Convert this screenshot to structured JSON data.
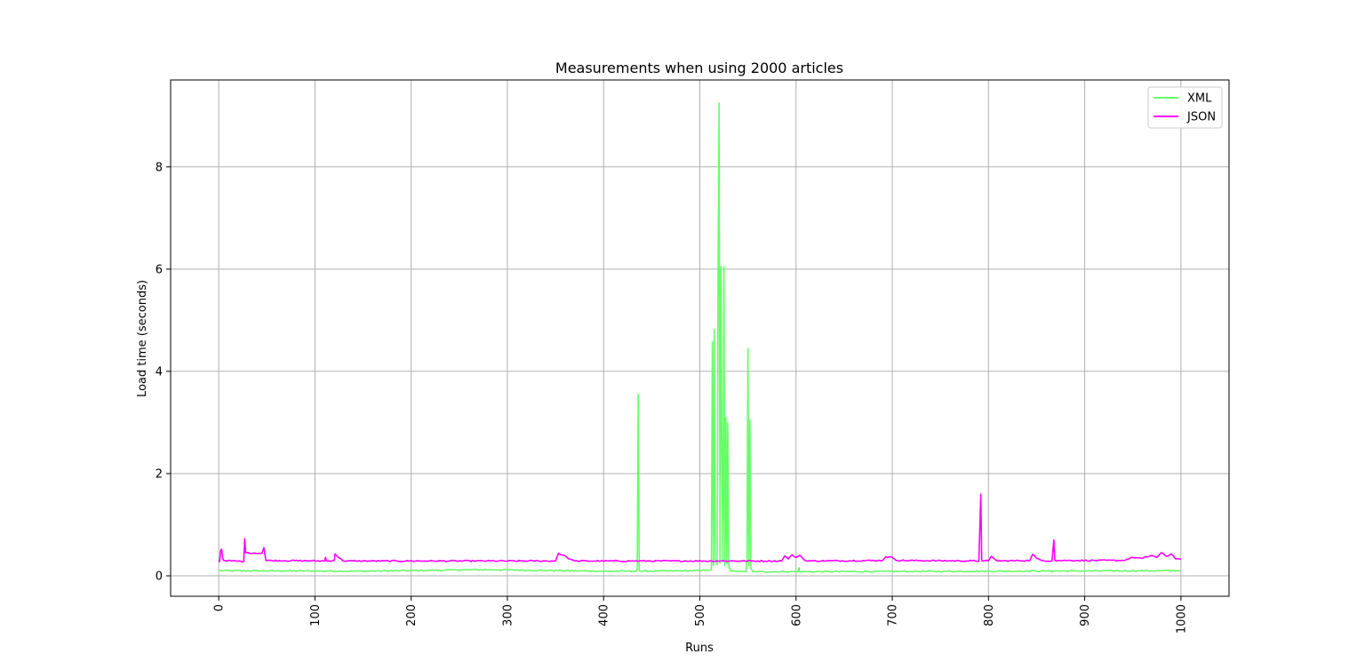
{
  "chart_data": {
    "type": "line",
    "title": "Measurements when using 2000 articles",
    "xlabel": "Runs",
    "ylabel": "Load time (seconds)",
    "xlim": [
      -50,
      1050
    ],
    "ylim": [
      -0.4,
      9.7
    ],
    "xticks": [
      0,
      100,
      200,
      300,
      400,
      500,
      600,
      700,
      800,
      900,
      1000
    ],
    "yticks": [
      0,
      2,
      4,
      6,
      8
    ],
    "grid": true,
    "legend_position": "top-right",
    "series": [
      {
        "name": "XML",
        "color": "#66ff66",
        "baseline": 0.08,
        "points": [
          [
            0,
            0.1
          ],
          [
            150,
            0.09
          ],
          [
            275,
            0.12
          ],
          [
            400,
            0.09
          ],
          [
            434,
            0.09
          ],
          [
            435,
            0.12
          ],
          [
            436,
            3.55
          ],
          [
            437,
            0.1
          ],
          [
            438,
            0.09
          ],
          [
            500,
            0.1
          ],
          [
            512,
            0.12
          ],
          [
            513,
            4.58
          ],
          [
            514,
            0.2
          ],
          [
            515,
            4.82
          ],
          [
            516,
            0.3
          ],
          [
            518,
            0.22
          ],
          [
            519,
            6.1
          ],
          [
            520,
            9.25
          ],
          [
            521,
            0.25
          ],
          [
            522,
            6.05
          ],
          [
            523,
            2.2
          ],
          [
            524,
            0.3
          ],
          [
            525,
            6.05
          ],
          [
            526,
            0.2
          ],
          [
            527,
            3.1
          ],
          [
            528,
            0.25
          ],
          [
            529,
            3.0
          ],
          [
            530,
            0.2
          ],
          [
            532,
            0.09
          ],
          [
            548,
            0.08
          ],
          [
            549,
            0.3
          ],
          [
            550,
            4.45
          ],
          [
            551,
            0.2
          ],
          [
            552,
            3.05
          ],
          [
            553,
            0.15
          ],
          [
            555,
            0.08
          ],
          [
            602,
            0.08
          ],
          [
            603,
            0.16
          ],
          [
            604,
            0.08
          ],
          [
            1000,
            0.1
          ]
        ]
      },
      {
        "name": "JSON",
        "color": "#ff00ff",
        "baseline": 0.29,
        "points": [
          [
            0,
            0.3
          ],
          [
            1,
            0.28
          ],
          [
            2,
            0.5
          ],
          [
            3,
            0.52
          ],
          [
            4,
            0.35
          ],
          [
            5,
            0.3
          ],
          [
            26,
            0.28
          ],
          [
            27,
            0.73
          ],
          [
            28,
            0.45
          ],
          [
            45,
            0.44
          ],
          [
            47,
            0.55
          ],
          [
            49,
            0.3
          ],
          [
            110,
            0.29
          ],
          [
            111,
            0.36
          ],
          [
            112,
            0.29
          ],
          [
            120,
            0.3
          ],
          [
            121,
            0.43
          ],
          [
            125,
            0.35
          ],
          [
            130,
            0.29
          ],
          [
            350,
            0.29
          ],
          [
            353,
            0.44
          ],
          [
            358,
            0.4
          ],
          [
            362,
            0.36
          ],
          [
            366,
            0.32
          ],
          [
            370,
            0.29
          ],
          [
            585,
            0.29
          ],
          [
            588,
            0.39
          ],
          [
            592,
            0.33
          ],
          [
            596,
            0.41
          ],
          [
            600,
            0.36
          ],
          [
            604,
            0.4
          ],
          [
            608,
            0.32
          ],
          [
            612,
            0.29
          ],
          [
            690,
            0.3
          ],
          [
            693,
            0.37
          ],
          [
            700,
            0.36
          ],
          [
            705,
            0.3
          ],
          [
            790,
            0.29
          ],
          [
            792,
            1.6
          ],
          [
            793,
            0.3
          ],
          [
            800,
            0.29
          ],
          [
            803,
            0.38
          ],
          [
            806,
            0.33
          ],
          [
            810,
            0.29
          ],
          [
            843,
            0.3
          ],
          [
            846,
            0.42
          ],
          [
            850,
            0.34
          ],
          [
            855,
            0.3
          ],
          [
            866,
            0.29
          ],
          [
            868,
            0.7
          ],
          [
            869,
            0.3
          ],
          [
            940,
            0.3
          ],
          [
            950,
            0.36
          ],
          [
            960,
            0.34
          ],
          [
            970,
            0.4
          ],
          [
            975,
            0.36
          ],
          [
            980,
            0.45
          ],
          [
            985,
            0.38
          ],
          [
            990,
            0.43
          ],
          [
            995,
            0.33
          ],
          [
            1000,
            0.33
          ]
        ]
      }
    ]
  }
}
